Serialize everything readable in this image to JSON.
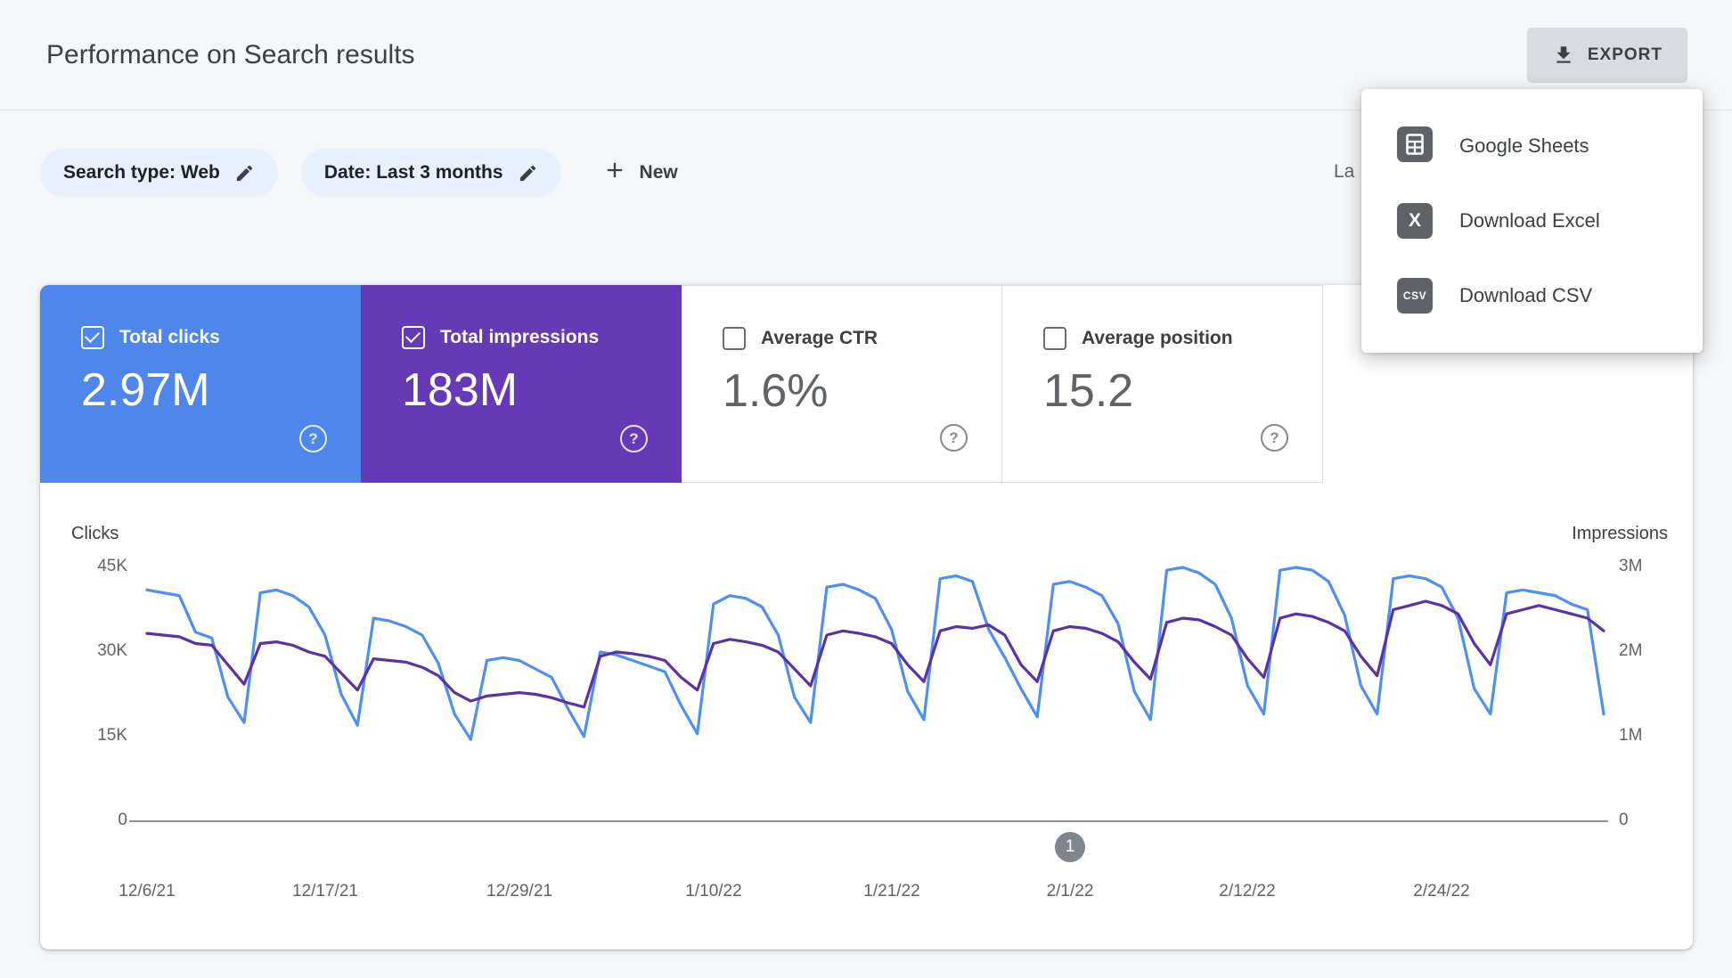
{
  "header": {
    "title": "Performance on Search results",
    "export_label": "EXPORT"
  },
  "filters": {
    "search_type_chip": "Search type: Web",
    "date_chip": "Date: Last 3 months",
    "new_button": "New",
    "last_updated_partial": "La"
  },
  "export_menu": {
    "items": [
      {
        "label": "Google Sheets",
        "icon": "google-sheets-icon"
      },
      {
        "label": "Download Excel",
        "icon": "excel-icon",
        "icon_text": "X"
      },
      {
        "label": "Download CSV",
        "icon": "csv-icon",
        "icon_text": "CSV"
      }
    ]
  },
  "metrics": [
    {
      "label": "Total clicks",
      "value": "2.97M",
      "selected": true,
      "color": "#4e86ec"
    },
    {
      "label": "Total impressions",
      "value": "183M",
      "selected": true,
      "color": "#6639b6"
    },
    {
      "label": "Average CTR",
      "value": "1.6%",
      "selected": false,
      "color": "#ffffff"
    },
    {
      "label": "Average position",
      "value": "15.2",
      "selected": false,
      "color": "#ffffff"
    }
  ],
  "chart_data": {
    "type": "line",
    "left_axis": {
      "label": "Clicks",
      "ticks": [
        "45K",
        "30K",
        "15K",
        "0"
      ],
      "max": 45,
      "unit": "thousand clicks per day"
    },
    "right_axis": {
      "label": "Impressions",
      "ticks": [
        "3M",
        "2M",
        "1M",
        "0"
      ],
      "max": 3,
      "unit": "million impressions per day"
    },
    "x_labels": [
      {
        "text": "12/6/21",
        "day": 0
      },
      {
        "text": "12/17/21",
        "day": 11
      },
      {
        "text": "12/29/21",
        "day": 23
      },
      {
        "text": "1/10/22",
        "day": 35
      },
      {
        "text": "1/21/22",
        "day": 46
      },
      {
        "text": "2/1/22",
        "day": 57
      },
      {
        "text": "2/12/22",
        "day": 68
      },
      {
        "text": "2/24/22",
        "day": 80
      }
    ],
    "annotation": {
      "text": "1",
      "day": 57
    },
    "series": [
      {
        "name": "Clicks",
        "axis": "left",
        "color": "#4e90f2",
        "axis_max": 45,
        "value_unit": "K",
        "values": [
          41,
          40.5,
          40,
          33.5,
          32.5,
          22,
          17.5,
          40.5,
          41,
          40,
          38,
          33,
          22.5,
          17,
          36,
          35.5,
          34.5,
          33,
          28,
          19,
          14.5,
          28.5,
          29,
          28.5,
          27,
          25.5,
          20,
          15,
          30,
          29.5,
          28.5,
          27.5,
          26.5,
          20.5,
          15.5,
          38.5,
          40,
          39.5,
          38,
          33,
          22,
          17.5,
          41.5,
          42,
          41,
          39.5,
          34,
          23,
          18,
          43,
          43.5,
          42.5,
          34,
          29,
          23.5,
          18.5,
          42,
          42.5,
          41.5,
          40,
          35,
          23,
          18,
          44.5,
          45,
          44,
          42,
          36,
          24,
          19,
          44.5,
          45,
          44.5,
          42.5,
          36.5,
          24,
          19,
          43,
          43.5,
          43,
          41.5,
          36,
          23.5,
          19,
          40.5,
          41,
          40.5,
          40,
          38.5,
          37.5,
          19
        ]
      },
      {
        "name": "Impressions",
        "axis": "right",
        "color": "#5c31a8",
        "axis_max": 3,
        "value_unit": "M",
        "values": [
          2.22,
          2.2,
          2.18,
          2.1,
          2.08,
          1.85,
          1.62,
          2.1,
          2.12,
          2.08,
          2.0,
          1.95,
          1.75,
          1.55,
          1.92,
          1.9,
          1.88,
          1.82,
          1.72,
          1.52,
          1.42,
          1.48,
          1.5,
          1.52,
          1.5,
          1.46,
          1.4,
          1.35,
          1.95,
          2.0,
          1.98,
          1.95,
          1.9,
          1.7,
          1.55,
          2.1,
          2.15,
          2.12,
          2.08,
          2.0,
          1.8,
          1.6,
          2.2,
          2.25,
          2.22,
          2.18,
          2.1,
          1.85,
          1.65,
          2.25,
          2.3,
          2.28,
          2.32,
          2.2,
          1.85,
          1.65,
          2.25,
          2.3,
          2.28,
          2.22,
          2.12,
          1.88,
          1.68,
          2.35,
          2.4,
          2.38,
          2.3,
          2.2,
          1.92,
          1.7,
          2.4,
          2.45,
          2.42,
          2.35,
          2.25,
          1.95,
          1.72,
          2.5,
          2.55,
          2.6,
          2.55,
          2.45,
          2.1,
          1.85,
          2.45,
          2.5,
          2.55,
          2.5,
          2.45,
          2.4,
          2.25
        ]
      }
    ]
  }
}
